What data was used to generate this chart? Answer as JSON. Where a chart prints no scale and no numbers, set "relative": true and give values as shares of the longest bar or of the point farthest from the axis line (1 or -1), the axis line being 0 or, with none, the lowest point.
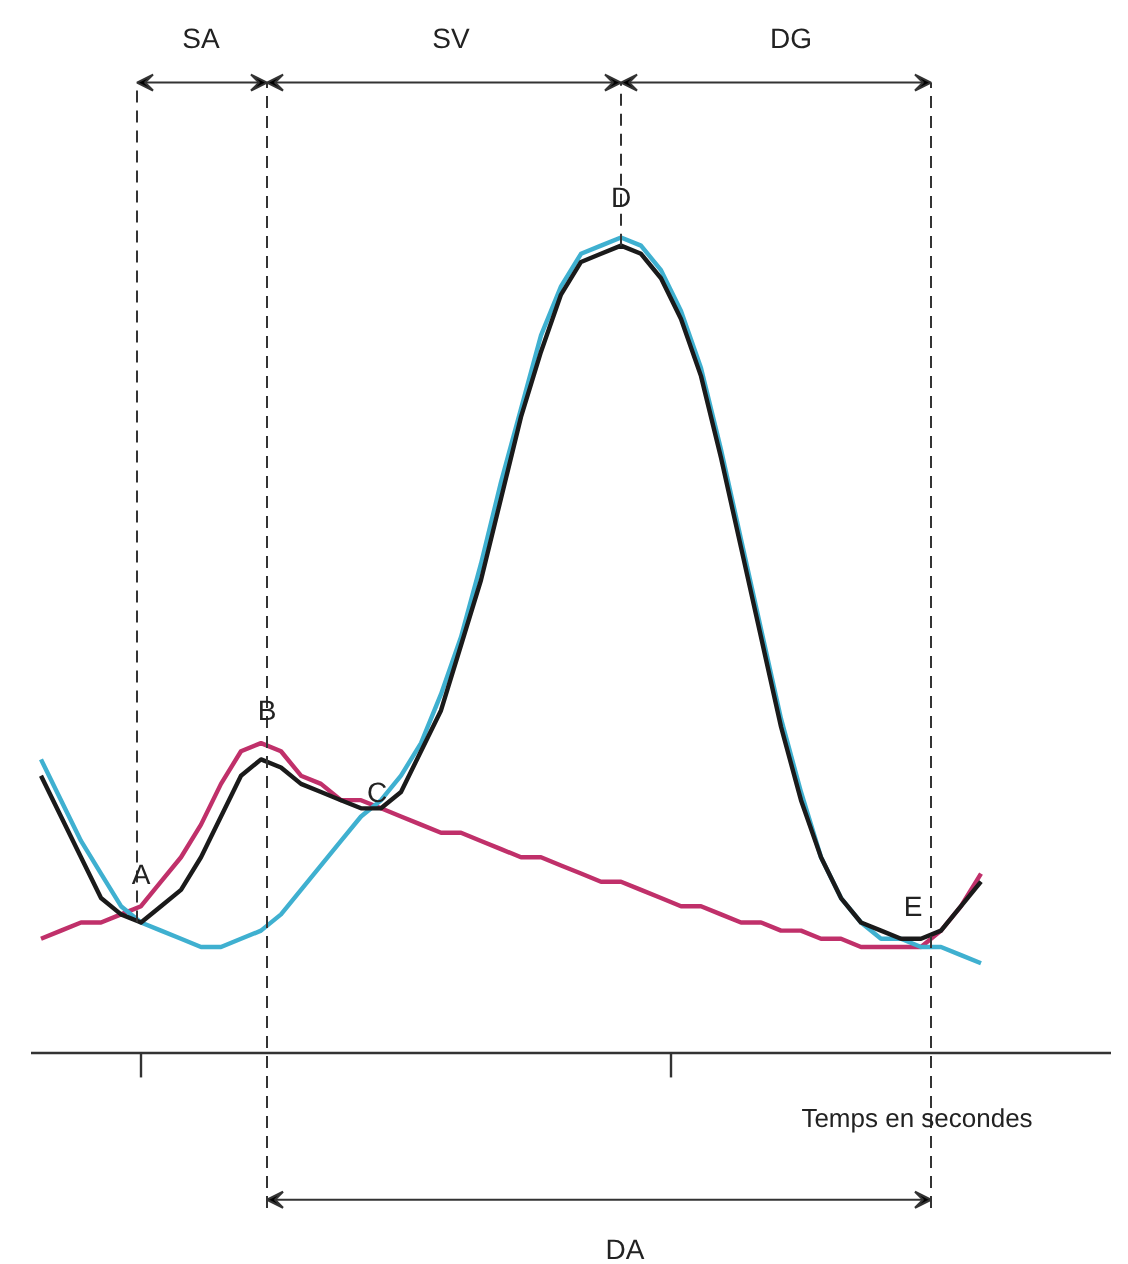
{
  "chart_data": {
    "type": "line",
    "relative": true,
    "xlabel": "Temps en secondes",
    "categories": [
      null,
      null,
      null,
      null,
      null,
      null,
      null,
      null,
      null,
      null,
      null,
      null,
      null,
      null,
      null,
      null,
      null,
      null,
      null,
      null,
      null,
      null,
      null,
      null,
      null,
      null,
      null,
      null,
      null,
      null,
      null,
      null,
      null,
      null,
      null,
      null,
      null,
      null,
      null,
      null,
      null,
      null,
      null,
      null,
      null,
      null,
      null,
      null,
      null
    ],
    "series": [
      {
        "color": "#c0306a",
        "values": [
          0.14,
          0.15,
          0.16,
          0.16,
          0.17,
          0.18,
          0.21,
          0.24,
          0.28,
          0.33,
          0.37,
          0.38,
          0.37,
          0.34,
          0.33,
          0.31,
          0.31,
          0.3,
          0.29,
          0.28,
          0.27,
          0.27,
          0.26,
          0.25,
          0.24,
          0.24,
          0.23,
          0.22,
          0.21,
          0.21,
          0.2,
          0.19,
          0.18,
          0.18,
          0.17,
          0.16,
          0.16,
          0.15,
          0.15,
          0.14,
          0.14,
          0.13,
          0.13,
          0.13,
          0.13,
          0.15,
          0.18,
          0.22,
          null
        ]
      },
      {
        "color": "#3fb0d0",
        "values": [
          0.36,
          0.31,
          0.26,
          0.22,
          0.18,
          0.16,
          0.15,
          0.14,
          0.13,
          0.13,
          0.14,
          0.15,
          0.17,
          0.2,
          0.23,
          0.26,
          0.29,
          0.31,
          0.34,
          0.38,
          0.44,
          0.51,
          0.6,
          0.7,
          0.79,
          0.88,
          0.94,
          0.98,
          0.99,
          1,
          0.99,
          0.96,
          0.91,
          0.84,
          0.74,
          0.63,
          0.52,
          0.41,
          0.32,
          0.24,
          0.19,
          0.16,
          0.14,
          0.14,
          0.13,
          0.13,
          0.12,
          0.11,
          null
        ]
      },
      {
        "color": "#1a1a1a",
        "values": [
          0.34,
          0.29,
          0.24,
          0.19,
          0.17,
          0.16,
          0.18,
          0.2,
          0.24,
          0.29,
          0.34,
          0.36,
          0.35,
          0.33,
          0.32,
          0.31,
          0.3,
          0.3,
          0.32,
          0.37,
          0.42,
          0.5,
          0.58,
          0.68,
          0.78,
          0.86,
          0.93,
          0.97,
          0.98,
          0.99,
          0.98,
          0.95,
          0.9,
          0.83,
          0.73,
          0.62,
          0.51,
          0.4,
          0.31,
          0.24,
          0.19,
          0.16,
          0.15,
          0.14,
          0.14,
          0.15,
          0.18,
          0.21,
          null
        ]
      }
    ],
    "annotations": [
      "A",
      "B",
      "C",
      "D",
      "E",
      "SA",
      "SV",
      "DG",
      "DA"
    ]
  }
}
